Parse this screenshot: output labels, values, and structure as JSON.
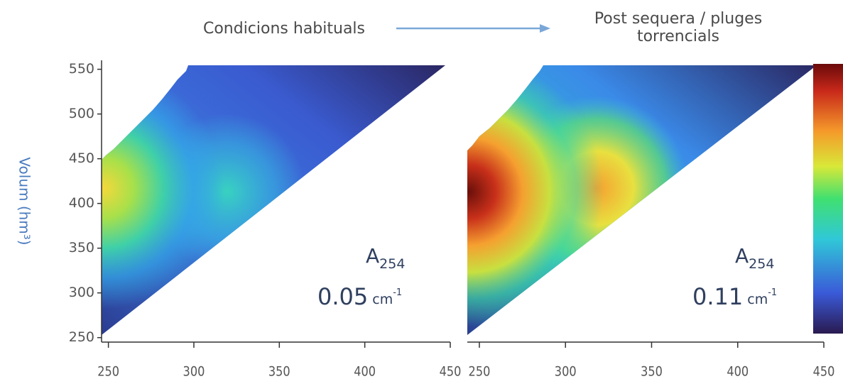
{
  "chart_data": [
    {
      "type": "heatmap",
      "title": "Condicions habituals",
      "y_label": "Volum (hm³)",
      "xlim": [
        246,
        450
      ],
      "xticks": [
        250,
        300,
        350,
        400,
        450
      ],
      "ylim": [
        245,
        560
      ],
      "yticks": [
        250,
        300,
        350,
        400,
        450,
        500,
        550
      ],
      "annotation": {
        "symbol": "A",
        "subscript": "254",
        "value": 0.05,
        "unit": "cm",
        "unit_exponent": "-1"
      }
    },
    {
      "type": "heatmap",
      "title": "Post sequera / pluges torrencials",
      "xlim": [
        243,
        450
      ],
      "xticks": [
        250,
        300,
        350,
        400,
        450
      ],
      "annotation": {
        "symbol": "A",
        "subscript": "254",
        "value": 0.11,
        "unit": "cm",
        "unit_exponent": "-1"
      }
    }
  ]
}
